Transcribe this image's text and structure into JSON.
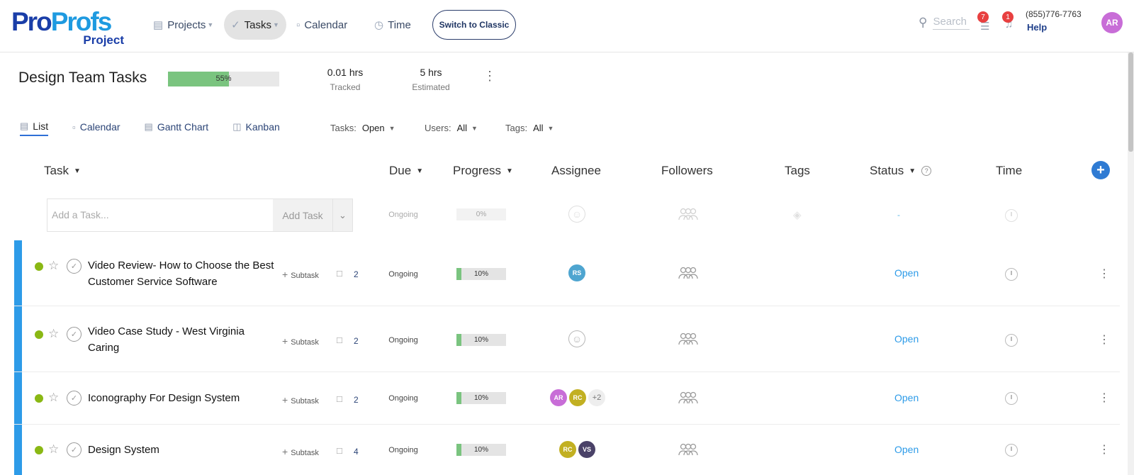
{
  "brand": {
    "name_part1": "Pro",
    "name_part2": "Profs",
    "sub": "Project"
  },
  "nav": {
    "projects": "Projects",
    "tasks": "Tasks",
    "calendar": "Calendar",
    "time": "Time",
    "switch_classic": "Switch to Classic"
  },
  "header_right": {
    "search_label": "Search",
    "list_badge": "7",
    "notif_badge": "1",
    "phone": "(855)776-7763",
    "help": "Help",
    "user_initials": "AR"
  },
  "project": {
    "title": "Design Team Tasks",
    "progress_label": "55%",
    "progress_value": 0.55,
    "tracked_value": "0.01 hrs",
    "tracked_label": "Tracked",
    "estimated_value": "5 hrs",
    "estimated_label": "Estimated"
  },
  "views": {
    "list": "List",
    "calendar": "Calendar",
    "gantt": "Gantt Chart",
    "kanban": "Kanban"
  },
  "filters": {
    "tasks_label": "Tasks:",
    "tasks_value": "Open",
    "users_label": "Users:",
    "users_value": "All",
    "tags_label": "Tags:",
    "tags_value": "All"
  },
  "columns": {
    "task": "Task",
    "due": "Due",
    "progress": "Progress",
    "assignee": "Assignee",
    "followers": "Followers",
    "tags": "Tags",
    "status": "Status",
    "time": "Time"
  },
  "add_task": {
    "placeholder": "Add a Task...",
    "button": "Add Task",
    "due": "Ongoing",
    "progress_label": "0%",
    "status": "-"
  },
  "tasks": [
    {
      "title": "Video Review- How to Choose the Best Customer Service Software",
      "subtask_label": "Subtask",
      "comments": "2",
      "due": "Ongoing",
      "progress_label": "10%",
      "progress_value": 0.1,
      "assignees": [
        "RS"
      ],
      "status": "Open"
    },
    {
      "title": "Video Case Study - West Virginia Caring",
      "subtask_label": "Subtask",
      "comments": "2",
      "due": "Ongoing",
      "progress_label": "10%",
      "progress_value": 0.1,
      "assignees": [],
      "status": "Open"
    },
    {
      "title": "Iconography For Design System",
      "subtask_label": "Subtask",
      "comments": "2",
      "due": "Ongoing",
      "progress_label": "10%",
      "progress_value": 0.1,
      "assignees": [
        "AR",
        "RC"
      ],
      "assignees_more": "+2",
      "status": "Open"
    },
    {
      "title": "Design System",
      "subtask_label": "Subtask",
      "comments": "4",
      "due": "Ongoing",
      "progress_label": "10%",
      "progress_value": 0.1,
      "assignees": [
        "RC",
        "VS"
      ],
      "status": "Open"
    }
  ],
  "colors": {
    "accent_blue": "#2d9be8",
    "progress_green": "#7ac47f",
    "status_dot": "#8ab814",
    "avatar_RS": "#4ea5d0",
    "avatar_AR": "#c86dd7",
    "avatar_RC": "#c2b022",
    "avatar_VS": "#4a4268"
  }
}
